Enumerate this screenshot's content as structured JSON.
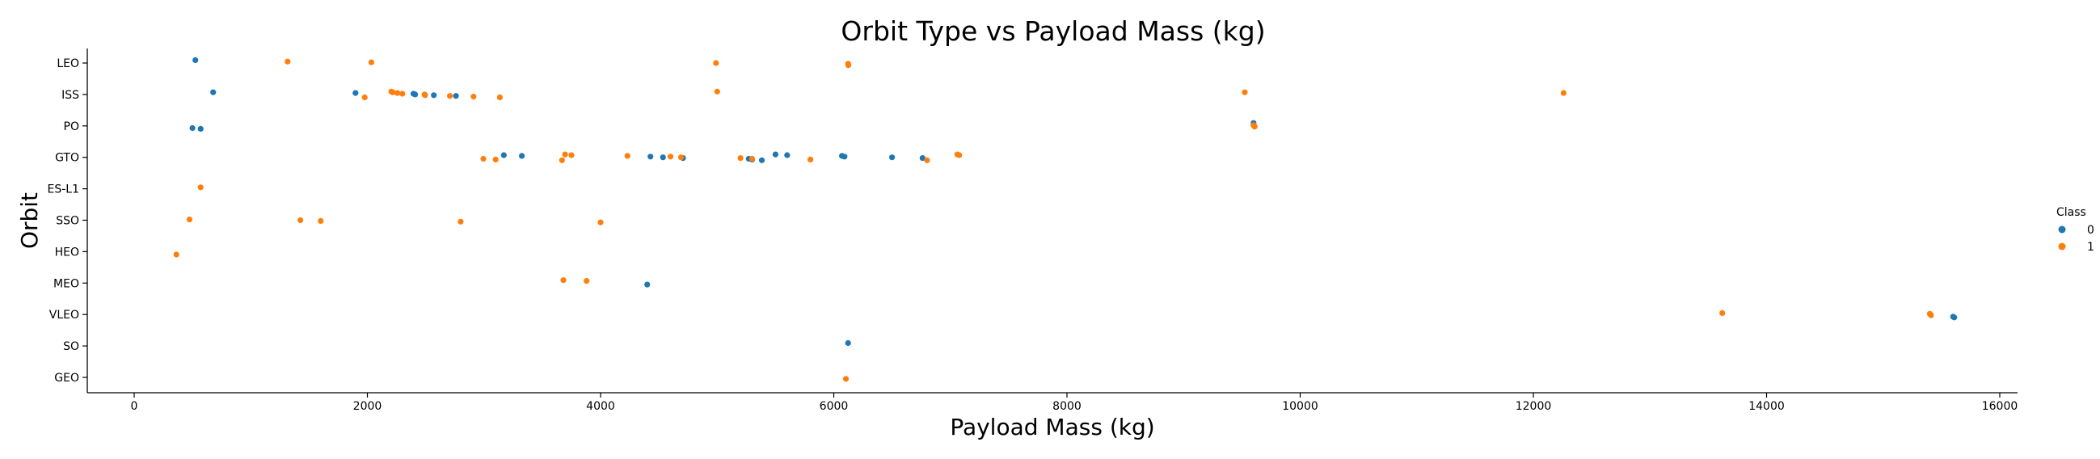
{
  "chart_data": {
    "type": "scatter",
    "title": "Orbit Type vs Payload Mass (kg)",
    "xlabel": "Payload Mass (kg)",
    "ylabel": "Orbit",
    "xlim": [
      -400,
      16350
    ],
    "xticks": [
      0,
      2000,
      4000,
      6000,
      8000,
      10000,
      12000,
      14000,
      16000
    ],
    "xtick_labels": [
      "0",
      "2000",
      "4000",
      "6000",
      "8000",
      "10000",
      "12000",
      "14000",
      "16000"
    ],
    "categories": [
      "LEO",
      "ISS",
      "PO",
      "GTO",
      "ES-L1",
      "SSO",
      "HEO",
      "MEO",
      "VLEO",
      "SO",
      "GEO"
    ],
    "grid": false,
    "legend": {
      "title": "Class",
      "placement": "right",
      "entries": [
        {
          "label": "0",
          "color": "#1f77b4"
        },
        {
          "label": "1",
          "color": "#ff7f0e"
        }
      ]
    },
    "series": [
      {
        "name": "0",
        "color": "#1f77b4",
        "points": [
          {
            "x": 525,
            "y": "LEO"
          },
          {
            "x": 677,
            "y": "ISS"
          },
          {
            "x": 1898,
            "y": "ISS"
          },
          {
            "x": 2395,
            "y": "ISS"
          },
          {
            "x": 2410,
            "y": "ISS"
          },
          {
            "x": 2570,
            "y": "ISS"
          },
          {
            "x": 2760,
            "y": "ISS"
          },
          {
            "x": 500,
            "y": "PO"
          },
          {
            "x": 570,
            "y": "PO"
          },
          {
            "x": 9600,
            "y": "PO"
          },
          {
            "x": 3170,
            "y": "GTO"
          },
          {
            "x": 3325,
            "y": "GTO"
          },
          {
            "x": 4428,
            "y": "GTO"
          },
          {
            "x": 4535,
            "y": "GTO"
          },
          {
            "x": 4707,
            "y": "GTO"
          },
          {
            "x": 5271,
            "y": "GTO"
          },
          {
            "x": 5300,
            "y": "GTO"
          },
          {
            "x": 5383,
            "y": "GTO"
          },
          {
            "x": 5500,
            "y": "GTO"
          },
          {
            "x": 5600,
            "y": "GTO"
          },
          {
            "x": 6070,
            "y": "GTO"
          },
          {
            "x": 6092,
            "y": "GTO"
          },
          {
            "x": 6500,
            "y": "GTO"
          },
          {
            "x": 6761,
            "y": "GTO"
          },
          {
            "x": 4400,
            "y": "MEO"
          },
          {
            "x": 15600,
            "y": "VLEO"
          },
          {
            "x": 15610,
            "y": "VLEO"
          },
          {
            "x": 6123,
            "y": "SO"
          }
        ]
      },
      {
        "name": "1",
        "color": "#ff7f0e",
        "points": [
          {
            "x": 1316,
            "y": "LEO"
          },
          {
            "x": 2034,
            "y": "LEO"
          },
          {
            "x": 4990,
            "y": "LEO"
          },
          {
            "x": 6123,
            "y": "LEO"
          },
          {
            "x": 6124,
            "y": "LEO"
          },
          {
            "x": 6125,
            "y": "LEO"
          },
          {
            "x": 1977,
            "y": "ISS"
          },
          {
            "x": 2205,
            "y": "ISS"
          },
          {
            "x": 2216,
            "y": "ISS"
          },
          {
            "x": 2257,
            "y": "ISS"
          },
          {
            "x": 2300,
            "y": "ISS"
          },
          {
            "x": 2490,
            "y": "ISS"
          },
          {
            "x": 2495,
            "y": "ISS"
          },
          {
            "x": 2708,
            "y": "ISS"
          },
          {
            "x": 2910,
            "y": "ISS"
          },
          {
            "x": 3136,
            "y": "ISS"
          },
          {
            "x": 5000,
            "y": "ISS"
          },
          {
            "x": 9525,
            "y": "ISS"
          },
          {
            "x": 12259,
            "y": "ISS"
          },
          {
            "x": 9600,
            "y": "PO"
          },
          {
            "x": 9605,
            "y": "PO"
          },
          {
            "x": 9610,
            "y": "PO"
          },
          {
            "x": 2995,
            "y": "GTO"
          },
          {
            "x": 3100,
            "y": "GTO"
          },
          {
            "x": 3669,
            "y": "GTO"
          },
          {
            "x": 3696,
            "y": "GTO"
          },
          {
            "x": 3750,
            "y": "GTO"
          },
          {
            "x": 4230,
            "y": "GTO"
          },
          {
            "x": 4600,
            "y": "GTO"
          },
          {
            "x": 4690,
            "y": "GTO"
          },
          {
            "x": 5200,
            "y": "GTO"
          },
          {
            "x": 5300,
            "y": "GTO"
          },
          {
            "x": 5800,
            "y": "GTO"
          },
          {
            "x": 6800,
            "y": "GTO"
          },
          {
            "x": 7060,
            "y": "GTO"
          },
          {
            "x": 7076,
            "y": "GTO"
          },
          {
            "x": 570,
            "y": "ES-L1"
          },
          {
            "x": 475,
            "y": "SSO"
          },
          {
            "x": 1425,
            "y": "SSO"
          },
          {
            "x": 1600,
            "y": "SSO"
          },
          {
            "x": 2800,
            "y": "SSO"
          },
          {
            "x": 4000,
            "y": "SSO"
          },
          {
            "x": 362,
            "y": "HEO"
          },
          {
            "x": 3681,
            "y": "MEO"
          },
          {
            "x": 3880,
            "y": "MEO"
          },
          {
            "x": 13620,
            "y": "VLEO"
          },
          {
            "x": 15400,
            "y": "VLEO"
          },
          {
            "x": 15405,
            "y": "VLEO"
          },
          {
            "x": 15410,
            "y": "VLEO"
          },
          {
            "x": 6104,
            "y": "GEO"
          }
        ]
      }
    ]
  }
}
